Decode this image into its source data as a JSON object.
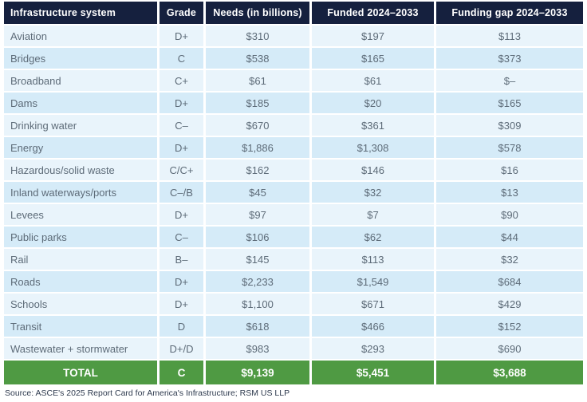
{
  "colors": {
    "header_bg": "#15203e",
    "header_text": "#ffffff",
    "row_light": "#e9f4fb",
    "row_dark": "#d5ebf8",
    "cell_text": "#5d6b78",
    "total_bg": "#4f9a43",
    "total_text": "#ffffff",
    "source_text": "#2e3a4e",
    "separator": "#ffffff"
  },
  "chart_data": {
    "type": "table",
    "columns": [
      "Infrastructure system",
      "Grade",
      "Needs (in billions)",
      "Funded 2024–2033",
      "Funding gap 2024–2033"
    ],
    "rows": [
      {
        "system": "Aviation",
        "grade": "D+",
        "needs": "$310",
        "funded": "$197",
        "gap": "$113"
      },
      {
        "system": "Bridges",
        "grade": "C",
        "needs": "$538",
        "funded": "$165",
        "gap": "$373"
      },
      {
        "system": "Broadband",
        "grade": "C+",
        "needs": "$61",
        "funded": "$61",
        "gap": "$–"
      },
      {
        "system": "Dams",
        "grade": "D+",
        "needs": "$185",
        "funded": "$20",
        "gap": "$165"
      },
      {
        "system": "Drinking water",
        "grade": "C–",
        "needs": "$670",
        "funded": "$361",
        "gap": "$309"
      },
      {
        "system": "Energy",
        "grade": "D+",
        "needs": "$1,886",
        "funded": "$1,308",
        "gap": "$578"
      },
      {
        "system": "Hazardous/solid waste",
        "grade": "C/C+",
        "needs": "$162",
        "funded": "$146",
        "gap": "$16"
      },
      {
        "system": "Inland waterways/ports",
        "grade": "C–/B",
        "needs": "$45",
        "funded": "$32",
        "gap": "$13"
      },
      {
        "system": "Levees",
        "grade": "D+",
        "needs": "$97",
        "funded": "$7",
        "gap": "$90"
      },
      {
        "system": "Public parks",
        "grade": "C–",
        "needs": "$106",
        "funded": "$62",
        "gap": "$44"
      },
      {
        "system": "Rail",
        "grade": "B–",
        "needs": "$145",
        "funded": "$113",
        "gap": "$32"
      },
      {
        "system": "Roads",
        "grade": "D+",
        "needs": "$2,233",
        "funded": "$1,549",
        "gap": "$684"
      },
      {
        "system": "Schools",
        "grade": "D+",
        "needs": "$1,100",
        "funded": "$671",
        "gap": "$429"
      },
      {
        "system": "Transit",
        "grade": "D",
        "needs": "$618",
        "funded": "$466",
        "gap": "$152"
      },
      {
        "system": "Wastewater + stormwater",
        "grade": "D+/D",
        "needs": "$983",
        "funded": "$293",
        "gap": "$690"
      }
    ],
    "total": {
      "label": "TOTAL",
      "grade": "C",
      "needs": "$9,139",
      "funded": "$5,451",
      "gap": "$3,688"
    },
    "title": "",
    "source_note": "Source: ASCE's 2025 Report Card for America's Infrastructure; RSM US LLP"
  }
}
